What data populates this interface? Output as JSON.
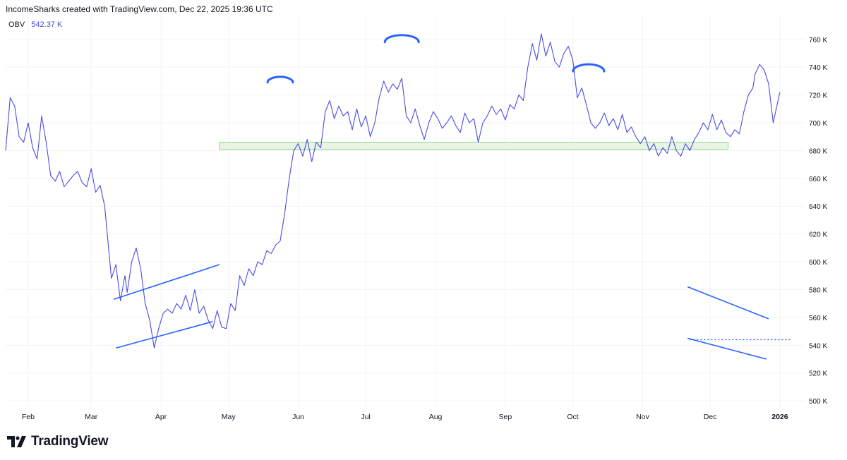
{
  "header": {
    "text": "IncomeSharks created with TradingView.com, Dec 22, 2025 19:36 UTC"
  },
  "legend": {
    "indicator": "OBV",
    "value": "542.37 K"
  },
  "brand": {
    "name": "TradingView",
    "icon": "tradingview-logo-icon"
  },
  "colors": {
    "series": "#4a4de3",
    "trend": "#2962ff",
    "zone_fill": "#e8f5e3",
    "zone_stroke": "#8fd48a",
    "grid": "#f0f3fa",
    "axis_text": "#131722"
  },
  "chart_data": {
    "type": "line",
    "title": "",
    "xlabel": "",
    "ylabel": "",
    "ylim": [
      495,
      768
    ],
    "y_ticks": [
      500,
      520,
      540,
      560,
      580,
      600,
      620,
      640,
      660,
      680,
      700,
      720,
      740,
      760
    ],
    "y_tick_suffix": " K",
    "x_range": [
      "2025-01-22",
      "2026-01-12"
    ],
    "x_ticks": [
      {
        "date": "2025-02-01",
        "label": "Feb",
        "bold": false
      },
      {
        "date": "2025-03-01",
        "label": "Mar",
        "bold": false
      },
      {
        "date": "2025-04-01",
        "label": "Apr",
        "bold": false
      },
      {
        "date": "2025-05-01",
        "label": "May",
        "bold": false
      },
      {
        "date": "2025-06-01",
        "label": "Jun",
        "bold": false
      },
      {
        "date": "2025-07-01",
        "label": "Jul",
        "bold": false
      },
      {
        "date": "2025-08-01",
        "label": "Aug",
        "bold": false
      },
      {
        "date": "2025-09-01",
        "label": "Sep",
        "bold": false
      },
      {
        "date": "2025-10-01",
        "label": "Oct",
        "bold": false
      },
      {
        "date": "2025-11-01",
        "label": "Nov",
        "bold": false
      },
      {
        "date": "2025-12-01",
        "label": "Dec",
        "bold": false
      },
      {
        "date": "2026-01-01",
        "label": "2026",
        "bold": true
      }
    ],
    "grid": true,
    "series": [
      {
        "color": "#4a4de3",
        "points": [
          [
            "2025-01-22",
            680
          ],
          [
            "2025-01-24",
            718
          ],
          [
            "2025-01-26",
            712
          ],
          [
            "2025-01-28",
            690
          ],
          [
            "2025-01-30",
            686
          ],
          [
            "2025-02-01",
            700
          ],
          [
            "2025-02-03",
            682
          ],
          [
            "2025-02-05",
            674
          ],
          [
            "2025-02-07",
            705
          ],
          [
            "2025-02-09",
            686
          ],
          [
            "2025-02-11",
            662
          ],
          [
            "2025-02-13",
            658
          ],
          [
            "2025-02-15",
            665
          ],
          [
            "2025-02-17",
            654
          ],
          [
            "2025-02-19",
            658
          ],
          [
            "2025-02-21",
            662
          ],
          [
            "2025-02-23",
            665
          ],
          [
            "2025-02-25",
            657
          ],
          [
            "2025-02-27",
            654
          ],
          [
            "2025-03-01",
            667
          ],
          [
            "2025-03-03",
            650
          ],
          [
            "2025-03-05",
            655
          ],
          [
            "2025-03-07",
            640
          ],
          [
            "2025-03-09",
            605
          ],
          [
            "2025-03-10",
            588
          ],
          [
            "2025-03-12",
            598
          ],
          [
            "2025-03-14",
            572
          ],
          [
            "2025-03-16",
            590
          ],
          [
            "2025-03-17",
            578
          ],
          [
            "2025-03-19",
            600
          ],
          [
            "2025-03-21",
            610
          ],
          [
            "2025-03-23",
            595
          ],
          [
            "2025-03-25",
            570
          ],
          [
            "2025-03-27",
            558
          ],
          [
            "2025-03-29",
            538
          ],
          [
            "2025-03-31",
            552
          ],
          [
            "2025-04-02",
            563
          ],
          [
            "2025-04-04",
            566
          ],
          [
            "2025-04-06",
            563
          ],
          [
            "2025-04-08",
            570
          ],
          [
            "2025-04-10",
            566
          ],
          [
            "2025-04-12",
            576
          ],
          [
            "2025-04-14",
            565
          ],
          [
            "2025-04-16",
            580
          ],
          [
            "2025-04-18",
            563
          ],
          [
            "2025-04-20",
            568
          ],
          [
            "2025-04-22",
            558
          ],
          [
            "2025-04-24",
            552
          ],
          [
            "2025-04-26",
            565
          ],
          [
            "2025-04-28",
            553
          ],
          [
            "2025-04-30",
            552
          ],
          [
            "2025-05-02",
            570
          ],
          [
            "2025-05-04",
            565
          ],
          [
            "2025-05-06",
            590
          ],
          [
            "2025-05-08",
            583
          ],
          [
            "2025-05-10",
            595
          ],
          [
            "2025-05-12",
            590
          ],
          [
            "2025-05-14",
            600
          ],
          [
            "2025-05-16",
            598
          ],
          [
            "2025-05-18",
            608
          ],
          [
            "2025-05-20",
            606
          ],
          [
            "2025-05-22",
            612
          ],
          [
            "2025-05-24",
            615
          ],
          [
            "2025-05-26",
            635
          ],
          [
            "2025-05-28",
            660
          ],
          [
            "2025-05-30",
            680
          ],
          [
            "2025-06-01",
            685
          ],
          [
            "2025-06-03",
            676
          ],
          [
            "2025-06-05",
            688
          ],
          [
            "2025-06-07",
            672
          ],
          [
            "2025-06-09",
            686
          ],
          [
            "2025-06-11",
            682
          ],
          [
            "2025-06-13",
            708
          ],
          [
            "2025-06-15",
            716
          ],
          [
            "2025-06-17",
            703
          ],
          [
            "2025-06-19",
            712
          ],
          [
            "2025-06-21",
            705
          ],
          [
            "2025-06-23",
            708
          ],
          [
            "2025-06-25",
            695
          ],
          [
            "2025-06-27",
            710
          ],
          [
            "2025-06-29",
            697
          ],
          [
            "2025-07-01",
            705
          ],
          [
            "2025-07-03",
            690
          ],
          [
            "2025-07-05",
            700
          ],
          [
            "2025-07-07",
            718
          ],
          [
            "2025-07-09",
            730
          ],
          [
            "2025-07-11",
            722
          ],
          [
            "2025-07-13",
            728
          ],
          [
            "2025-07-15",
            724
          ],
          [
            "2025-07-17",
            732
          ],
          [
            "2025-07-19",
            705
          ],
          [
            "2025-07-21",
            700
          ],
          [
            "2025-07-23",
            710
          ],
          [
            "2025-07-25",
            698
          ],
          [
            "2025-07-27",
            688
          ],
          [
            "2025-07-29",
            700
          ],
          [
            "2025-07-31",
            708
          ],
          [
            "2025-08-02",
            703
          ],
          [
            "2025-08-04",
            696
          ],
          [
            "2025-08-06",
            700
          ],
          [
            "2025-08-08",
            705
          ],
          [
            "2025-08-10",
            698
          ],
          [
            "2025-08-12",
            693
          ],
          [
            "2025-08-14",
            707
          ],
          [
            "2025-08-16",
            700
          ],
          [
            "2025-08-18",
            703
          ],
          [
            "2025-08-20",
            686
          ],
          [
            "2025-08-22",
            700
          ],
          [
            "2025-08-24",
            705
          ],
          [
            "2025-08-26",
            712
          ],
          [
            "2025-08-28",
            706
          ],
          [
            "2025-08-30",
            710
          ],
          [
            "2025-09-01",
            702
          ],
          [
            "2025-09-03",
            713
          ],
          [
            "2025-09-05",
            710
          ],
          [
            "2025-09-07",
            720
          ],
          [
            "2025-09-09",
            716
          ],
          [
            "2025-09-11",
            740
          ],
          [
            "2025-09-13",
            757
          ],
          [
            "2025-09-15",
            745
          ],
          [
            "2025-09-17",
            764
          ],
          [
            "2025-09-19",
            748
          ],
          [
            "2025-09-21",
            758
          ],
          [
            "2025-09-23",
            744
          ],
          [
            "2025-09-25",
            740
          ],
          [
            "2025-09-27",
            750
          ],
          [
            "2025-09-29",
            755
          ],
          [
            "2025-10-01",
            745
          ],
          [
            "2025-10-03",
            718
          ],
          [
            "2025-10-05",
            725
          ],
          [
            "2025-10-07",
            713
          ],
          [
            "2025-10-09",
            700
          ],
          [
            "2025-10-11",
            696
          ],
          [
            "2025-10-13",
            700
          ],
          [
            "2025-10-15",
            707
          ],
          [
            "2025-10-17",
            698
          ],
          [
            "2025-10-19",
            703
          ],
          [
            "2025-10-21",
            695
          ],
          [
            "2025-10-23",
            706
          ],
          [
            "2025-10-25",
            693
          ],
          [
            "2025-10-27",
            697
          ],
          [
            "2025-10-29",
            690
          ],
          [
            "2025-10-31",
            685
          ],
          [
            "2025-11-02",
            690
          ],
          [
            "2025-11-04",
            680
          ],
          [
            "2025-11-06",
            685
          ],
          [
            "2025-11-08",
            676
          ],
          [
            "2025-11-10",
            682
          ],
          [
            "2025-11-12",
            678
          ],
          [
            "2025-11-14",
            690
          ],
          [
            "2025-11-16",
            680
          ],
          [
            "2025-11-18",
            676
          ],
          [
            "2025-11-20",
            685
          ],
          [
            "2025-11-22",
            680
          ],
          [
            "2025-11-24",
            688
          ],
          [
            "2025-11-26",
            693
          ],
          [
            "2025-11-28",
            700
          ],
          [
            "2025-11-30",
            695
          ],
          [
            "2025-12-02",
            706
          ],
          [
            "2025-12-04",
            695
          ],
          [
            "2025-12-06",
            702
          ],
          [
            "2025-12-08",
            693
          ],
          [
            "2025-12-10",
            690
          ],
          [
            "2025-12-12",
            695
          ],
          [
            "2025-12-14",
            692
          ],
          [
            "2025-12-16",
            708
          ],
          [
            "2025-12-18",
            720
          ],
          [
            "2025-12-20",
            725
          ],
          [
            "2025-12-21",
            735
          ],
          [
            "2025-12-23",
            742
          ],
          [
            "2025-12-25",
            738
          ],
          [
            "2025-12-27",
            728
          ],
          [
            "2025-12-29",
            700
          ],
          [
            "2026-01-01",
            722
          ]
        ]
      }
    ],
    "drawings": [
      {
        "kind": "zone",
        "from": "2025-04-27",
        "to": "2025-12-09",
        "y": [
          681,
          686
        ]
      },
      {
        "kind": "line",
        "from": [
          "2025-03-11",
          573
        ],
        "to": [
          "2025-04-27",
          598
        ]
      },
      {
        "kind": "line",
        "from": [
          "2025-03-12",
          538
        ],
        "to": [
          "2025-04-24",
          557
        ]
      },
      {
        "kind": "arc",
        "center": [
          "2025-05-24",
          729
        ],
        "rx": 18,
        "ry": 8
      },
      {
        "kind": "arc",
        "center": [
          "2025-07-17",
          758
        ],
        "rx": 24,
        "ry": 10
      },
      {
        "kind": "arc",
        "center": [
          "2025-10-08",
          737
        ],
        "rx": 22,
        "ry": 10
      },
      {
        "kind": "line",
        "from": [
          "2025-11-21",
          582
        ],
        "to": [
          "2025-12-27",
          559
        ]
      },
      {
        "kind": "line",
        "from": [
          "2025-11-21",
          545
        ],
        "to": [
          "2025-12-26",
          530
        ]
      },
      {
        "kind": "dotted",
        "from": [
          "2025-11-22",
          544
        ],
        "to": [
          "2026-01-06",
          544
        ]
      }
    ]
  }
}
